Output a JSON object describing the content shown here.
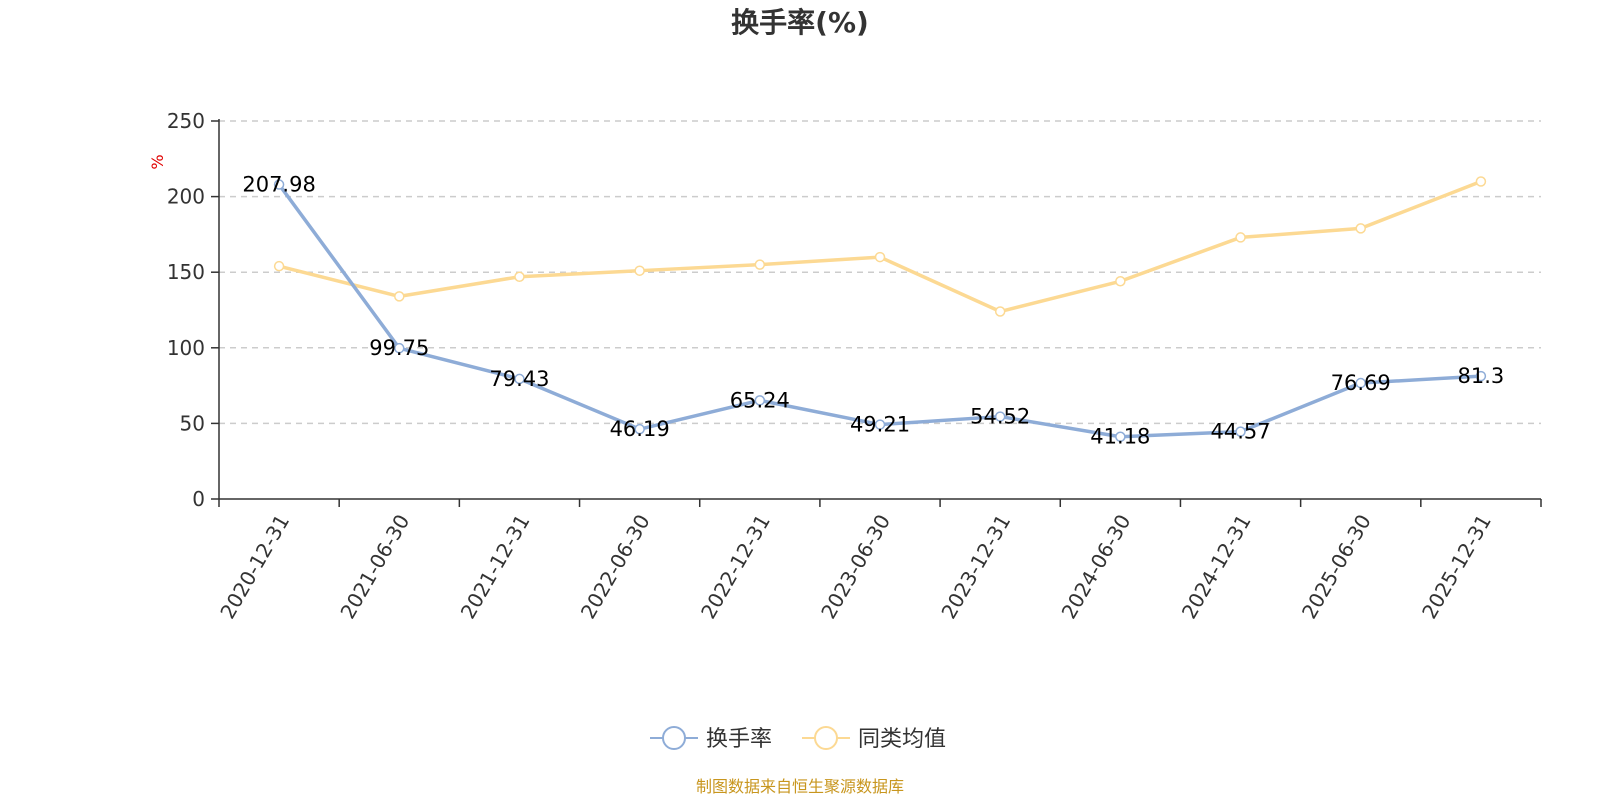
{
  "chart_data": {
    "type": "line",
    "title": "换手率(%)",
    "ylabel": "%",
    "ylim": [
      0,
      250
    ],
    "yticks": [
      0,
      50,
      100,
      150,
      200,
      250
    ],
    "grid": true,
    "categories": [
      "2020-12-31",
      "2021-06-30",
      "2021-12-31",
      "2022-06-30",
      "2022-12-31",
      "2023-06-30",
      "2023-12-31",
      "2024-06-30",
      "2024-12-31",
      "2025-06-30",
      "2025-12-31"
    ],
    "series": [
      {
        "name": "换手率",
        "color": "#8eacd7",
        "values": [
          207.98,
          99.75,
          79.43,
          46.19,
          65.24,
          49.21,
          54.52,
          41.18,
          44.57,
          76.69,
          81.3
        ],
        "labels": [
          "207.98",
          "99.75",
          "79.43",
          "46.19",
          "65.24",
          "49.21",
          "54.52",
          "41.18",
          "44.57",
          "76.69",
          "81.3"
        ],
        "show_labels": true
      },
      {
        "name": "同类均值",
        "color": "#fcd993",
        "values": [
          154,
          134,
          147,
          151,
          155,
          160,
          124,
          144,
          173,
          179,
          210
        ],
        "show_labels": false
      }
    ],
    "legend_position": "bottom-center",
    "unit_color": "#e00000"
  },
  "source_text": "制图数据来自恒生聚源数据库",
  "source_color": "#c8961e"
}
